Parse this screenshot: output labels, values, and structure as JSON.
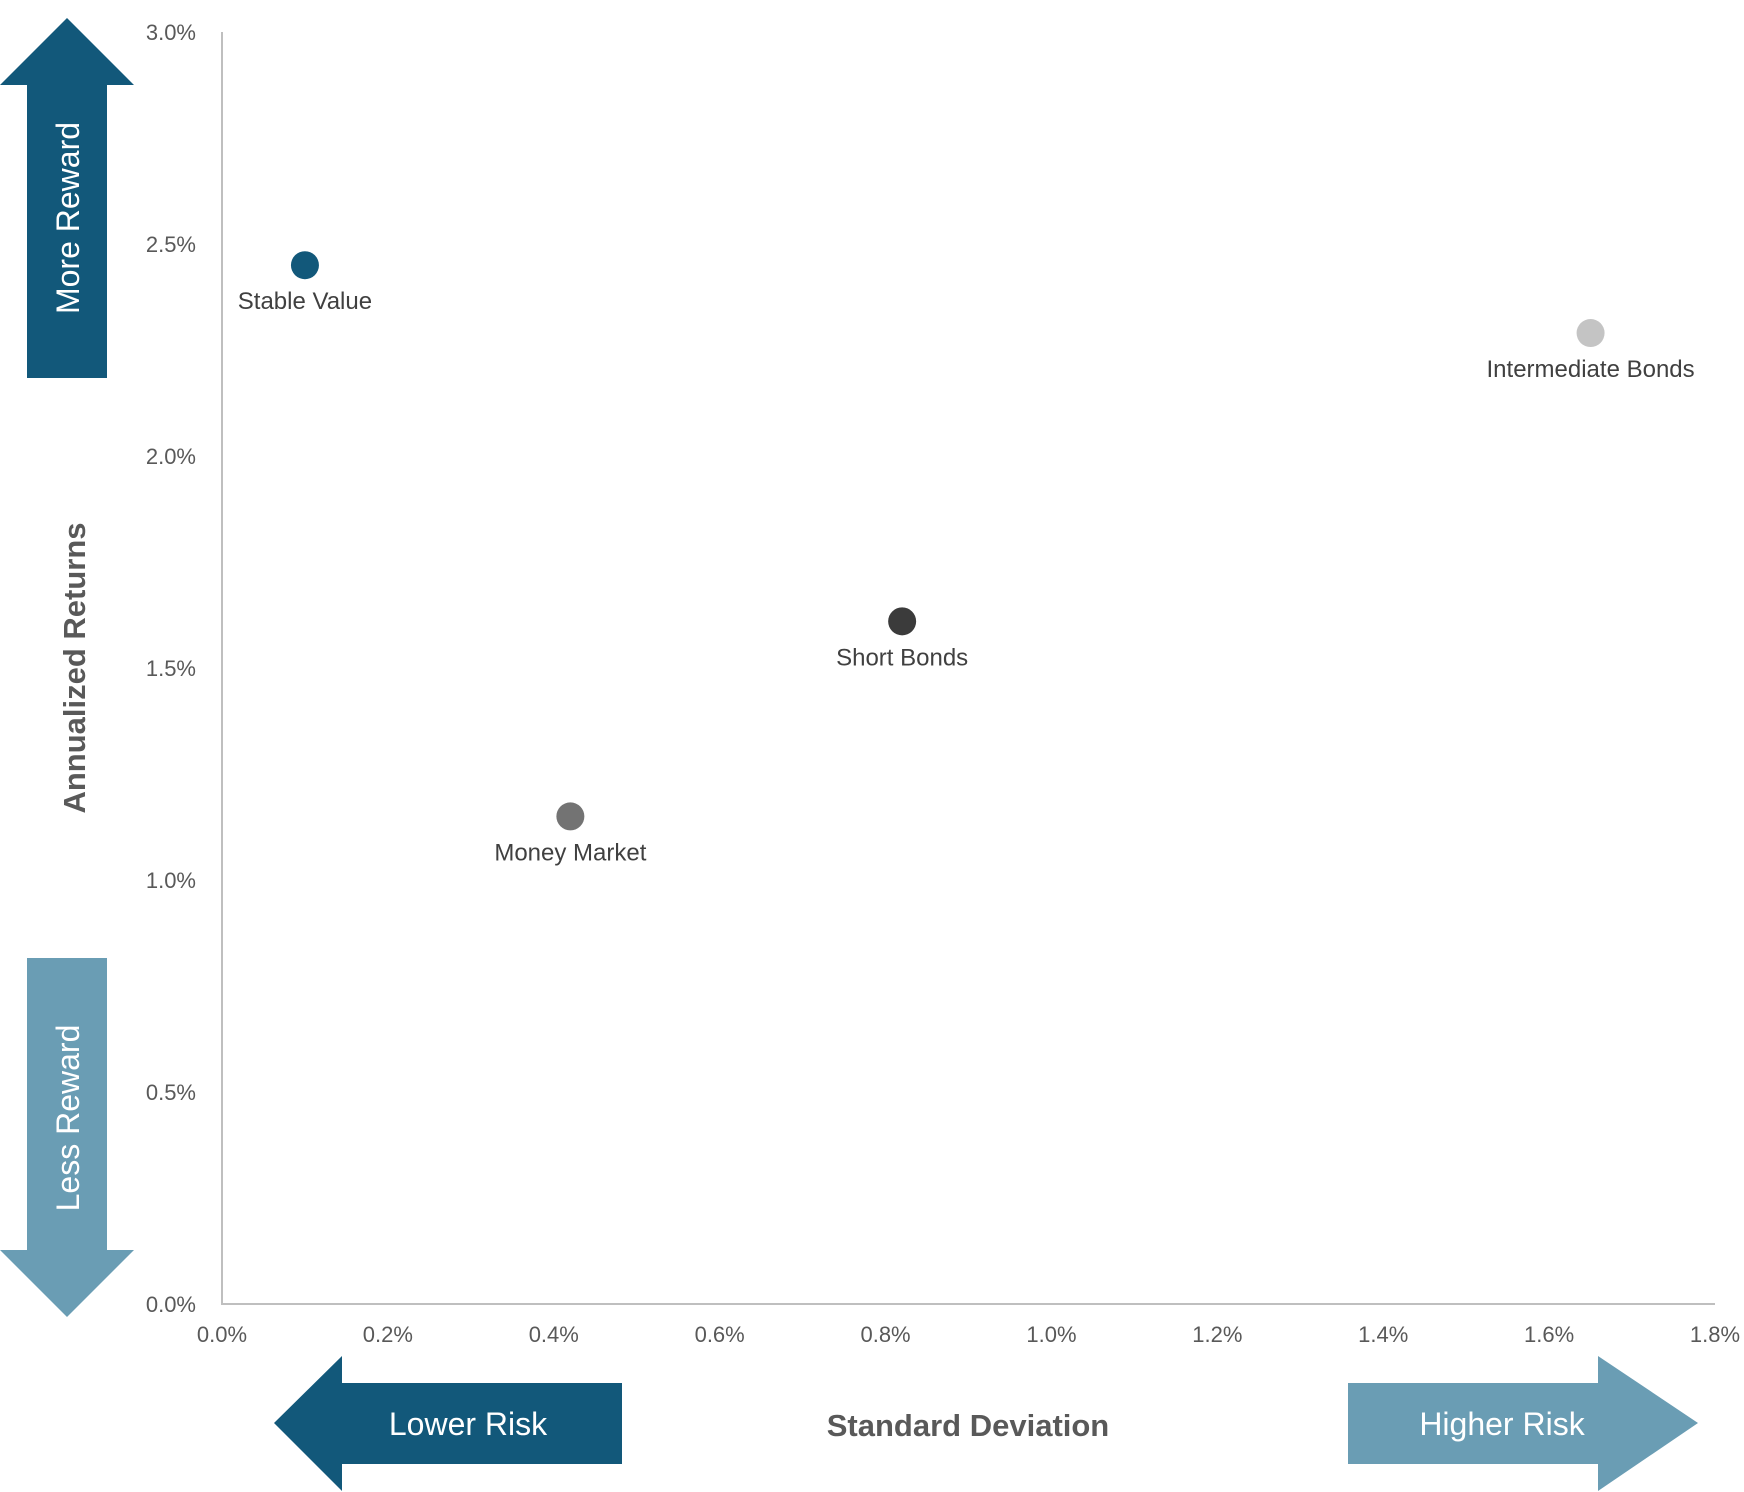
{
  "chart_data": {
    "type": "scatter",
    "xlabel": "Standard Deviation",
    "ylabel": "Annualized Returns",
    "xlim": [
      0,
      1.8
    ],
    "ylim": [
      0,
      3.0
    ],
    "x_ticks": [
      "0.0%",
      "0.2%",
      "0.4%",
      "0.6%",
      "0.8%",
      "1.0%",
      "1.2%",
      "1.4%",
      "1.6%",
      "1.8%"
    ],
    "y_ticks": [
      "0.0%",
      "0.5%",
      "1.0%",
      "1.5%",
      "2.0%",
      "2.5%",
      "3.0%"
    ],
    "grid": false,
    "points": [
      {
        "name": "Stable Value",
        "x": 0.1,
        "y": 2.45,
        "color": "#12587a"
      },
      {
        "name": "Intermediate Bonds",
        "x": 1.65,
        "y": 2.29,
        "color": "#c4c4c4"
      },
      {
        "name": "Short Bonds",
        "x": 0.82,
        "y": 1.61,
        "color": "#3b3b3b"
      },
      {
        "name": "Money Market",
        "x": 0.42,
        "y": 1.15,
        "color": "#737373"
      }
    ],
    "arrows": {
      "more_reward": "More Reward",
      "less_reward": "Less Reward",
      "lower_risk": "Lower Risk",
      "higher_risk": "Higher Risk"
    },
    "colors": {
      "dark_arrow": "#12587a",
      "light_arrow": "#6a9db4",
      "axis": "#bfbfbf"
    }
  }
}
